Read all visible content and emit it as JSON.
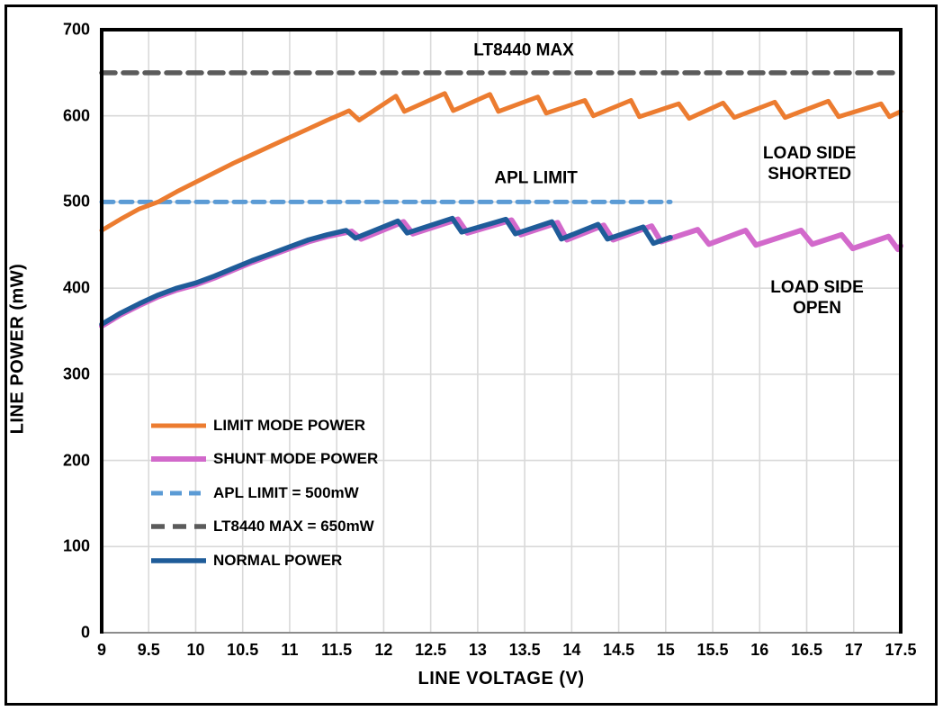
{
  "chart_data": {
    "type": "line",
    "xlabel": "LINE VOLTAGE (V)",
    "ylabel": "LINE POWER (mW)",
    "xlim": [
      9,
      17.5
    ],
    "ylim": [
      0,
      700
    ],
    "x_ticks": [
      9,
      9.5,
      10,
      10.5,
      11,
      11.5,
      12,
      12.5,
      13,
      13.5,
      14,
      14.5,
      15,
      15.5,
      16,
      16.5,
      17,
      17.5
    ],
    "y_ticks": [
      0,
      100,
      200,
      300,
      400,
      500,
      600,
      700
    ],
    "grid": true,
    "legend_position": "inside-lower-left",
    "colors": {
      "grid": "#D9D9D9",
      "plot_border": "#000000",
      "x_axis_line": "#8C8C8C",
      "text": "#000000"
    },
    "series": [
      {
        "name": "LIMIT MODE POWER",
        "color": "#EC7C30",
        "style": "solid",
        "width": 5,
        "zorder": 3,
        "points": [
          [
            9,
            467
          ],
          [
            9.2,
            480
          ],
          [
            9.4,
            492
          ],
          [
            9.6,
            500
          ],
          [
            9.8,
            512
          ],
          [
            10,
            523
          ],
          [
            10.2,
            534
          ],
          [
            10.4,
            545
          ],
          [
            10.6,
            555
          ],
          [
            10.8,
            565
          ],
          [
            11,
            575
          ],
          [
            11.2,
            585
          ],
          [
            11.4,
            595
          ],
          [
            11.55,
            602
          ],
          [
            11.63,
            606
          ],
          [
            11.74,
            595
          ],
          [
            12.13,
            623
          ],
          [
            12.22,
            605
          ],
          [
            12.65,
            626
          ],
          [
            12.74,
            606
          ],
          [
            13.13,
            625
          ],
          [
            13.22,
            605
          ],
          [
            13.64,
            622
          ],
          [
            13.73,
            603
          ],
          [
            14.14,
            618
          ],
          [
            14.23,
            600
          ],
          [
            14.63,
            618
          ],
          [
            14.72,
            599
          ],
          [
            15.14,
            614
          ],
          [
            15.25,
            597
          ],
          [
            15.61,
            615
          ],
          [
            15.73,
            598
          ],
          [
            16.16,
            616
          ],
          [
            16.27,
            598
          ],
          [
            16.73,
            617
          ],
          [
            16.84,
            599
          ],
          [
            17.29,
            614
          ],
          [
            17.38,
            599
          ],
          [
            17.5,
            605
          ]
        ]
      },
      {
        "name": "SHUNT MODE POWER",
        "color": "#D269CB",
        "style": "solid",
        "width": 6,
        "zorder": 3,
        "points": [
          [
            9,
            356
          ],
          [
            9.2,
            369
          ],
          [
            9.4,
            380
          ],
          [
            9.6,
            390
          ],
          [
            9.8,
            398
          ],
          [
            10,
            404
          ],
          [
            10.2,
            412
          ],
          [
            10.4,
            421
          ],
          [
            10.6,
            430
          ],
          [
            10.8,
            438
          ],
          [
            11,
            446
          ],
          [
            11.2,
            454
          ],
          [
            11.4,
            460
          ],
          [
            11.66,
            466
          ],
          [
            11.76,
            457
          ],
          [
            12.21,
            477
          ],
          [
            12.31,
            463
          ],
          [
            12.79,
            480
          ],
          [
            12.89,
            464
          ],
          [
            13.36,
            479
          ],
          [
            13.46,
            462
          ],
          [
            13.85,
            476
          ],
          [
            13.95,
            456
          ],
          [
            14.34,
            473
          ],
          [
            14.44,
            456
          ],
          [
            14.85,
            472
          ],
          [
            14.95,
            454
          ],
          [
            15.34,
            468
          ],
          [
            15.46,
            451
          ],
          [
            15.85,
            467
          ],
          [
            15.96,
            450
          ],
          [
            16.44,
            467
          ],
          [
            16.56,
            451
          ],
          [
            16.87,
            462
          ],
          [
            16.99,
            446
          ],
          [
            17.37,
            460
          ],
          [
            17.47,
            445
          ],
          [
            17.5,
            449
          ]
        ]
      },
      {
        "name": "APL LIMIT = 500mW",
        "color": "#5B9BD5",
        "style": "dashed",
        "dash": "13 8",
        "width": 5,
        "zorder": 1,
        "points": [
          [
            9,
            500
          ],
          [
            15.05,
            500
          ]
        ]
      },
      {
        "name": "LT8440 MAX = 650mW",
        "color": "#5B5B5B",
        "style": "dashed",
        "dash": "15 9",
        "width": 5.5,
        "zorder": 1,
        "points": [
          [
            9,
            650
          ],
          [
            17.5,
            650
          ]
        ]
      },
      {
        "name": "NORMAL POWER",
        "color": "#1F5C99",
        "style": "solid",
        "width": 5.5,
        "zorder": 4,
        "points": [
          [
            9,
            358
          ],
          [
            9.2,
            371
          ],
          [
            9.4,
            382
          ],
          [
            9.6,
            392
          ],
          [
            9.8,
            400
          ],
          [
            10,
            406
          ],
          [
            10.2,
            414
          ],
          [
            10.4,
            423
          ],
          [
            10.6,
            432
          ],
          [
            10.8,
            440
          ],
          [
            11,
            448
          ],
          [
            11.2,
            456
          ],
          [
            11.4,
            462
          ],
          [
            11.6,
            467
          ],
          [
            11.7,
            458
          ],
          [
            12.15,
            478
          ],
          [
            12.25,
            464
          ],
          [
            12.73,
            481
          ],
          [
            12.83,
            465
          ],
          [
            13.3,
            480
          ],
          [
            13.4,
            463
          ],
          [
            13.79,
            477
          ],
          [
            13.89,
            457
          ],
          [
            14.28,
            474
          ],
          [
            14.38,
            457
          ],
          [
            14.76,
            471
          ],
          [
            14.87,
            452
          ],
          [
            15.05,
            459
          ]
        ]
      }
    ],
    "annotations": [
      {
        "id": "lt8440-max-label",
        "lines": [
          "LT8440 MAX"
        ],
        "x": 13.49,
        "y": 676
      },
      {
        "id": "apl-limit-label",
        "lines": [
          "APL LIMIT"
        ],
        "x": 13.62,
        "y": 528
      },
      {
        "id": "load-side-shorted-label",
        "lines": [
          "LOAD SIDE",
          "SHORTED"
        ],
        "x": 16.53,
        "y": 544
      },
      {
        "id": "load-side-open-label",
        "lines": [
          "LOAD SIDE",
          "OPEN"
        ],
        "x": 16.61,
        "y": 389
      }
    ]
  }
}
